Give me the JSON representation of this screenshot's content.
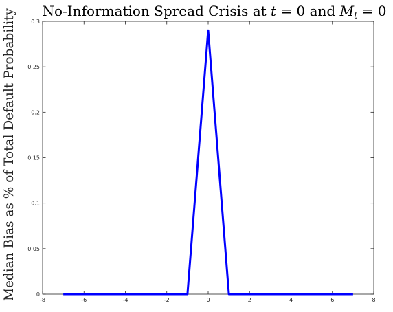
{
  "chart_data": {
    "type": "line",
    "title": {
      "text": "No-Information Spread Crisis at",
      "var_t": "t",
      "eq_t": " = 0 and ",
      "var_m": "M",
      "sub_m": "t",
      "eq_m": " = 0"
    },
    "xlabel": "",
    "ylabel": "Median Bias as % of Total Default Probability",
    "xlim": [
      -8,
      8
    ],
    "ylim": [
      0,
      0.3
    ],
    "xticks": [
      -8,
      -6,
      -4,
      -2,
      0,
      2,
      4,
      6,
      8
    ],
    "xtick_labels": [
      "-8",
      "-6",
      "-4",
      "-2",
      "0",
      "2",
      "4",
      "6",
      "8"
    ],
    "yticks": [
      0,
      0.05,
      0.1,
      0.15,
      0.2,
      0.25,
      0.3
    ],
    "ytick_labels": [
      "0",
      "0.05",
      "0.1",
      "0.15",
      "0.2",
      "0.25",
      "0.3"
    ],
    "grid": false,
    "series": [
      {
        "color": "#0000ff",
        "x": [
          -7,
          -1,
          0,
          1,
          7
        ],
        "y": [
          0,
          0,
          0.29,
          0,
          0
        ]
      }
    ]
  }
}
